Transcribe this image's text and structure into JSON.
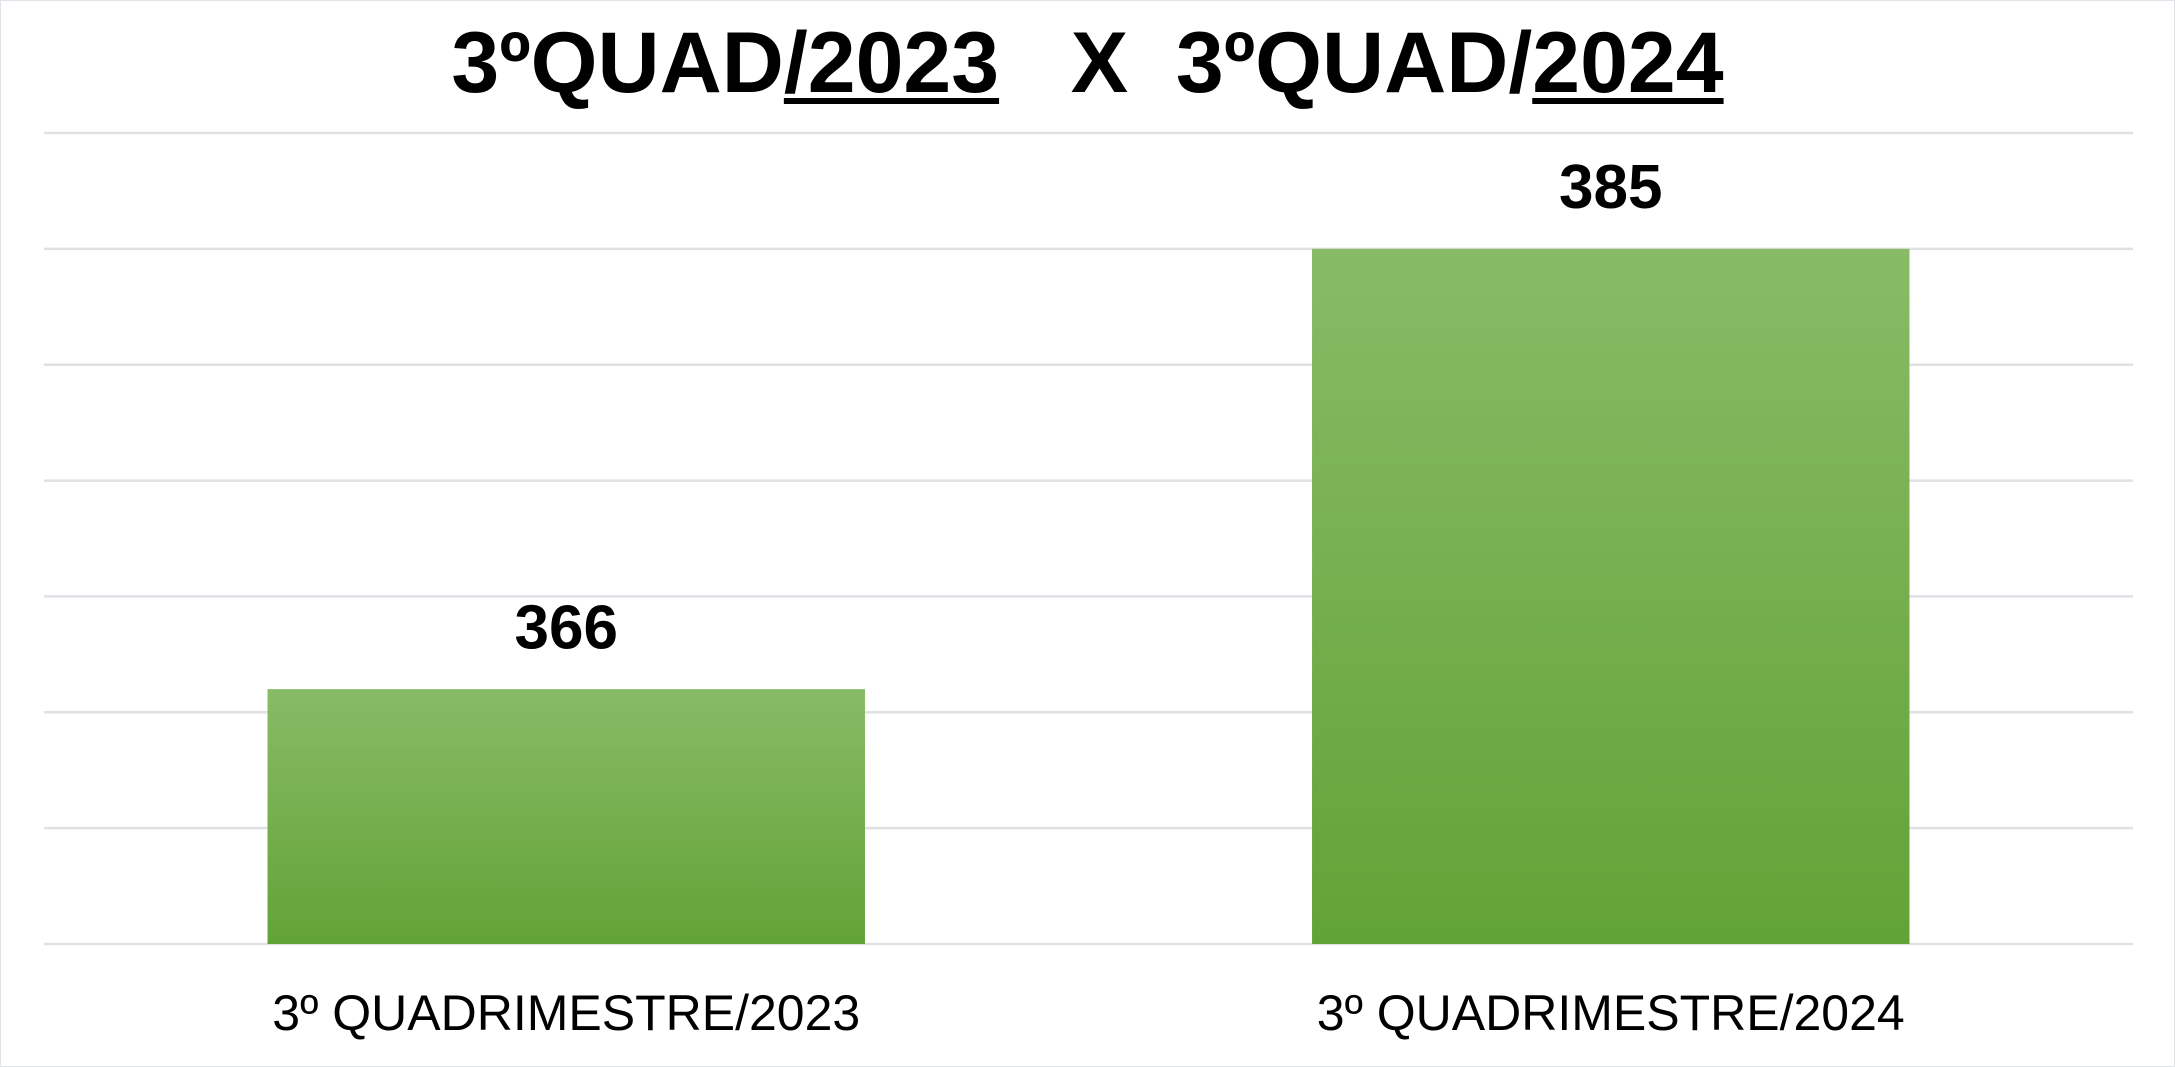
{
  "chart_data": {
    "type": "bar",
    "title": [
      {
        "text": "3ºQUAD",
        "underline": false
      },
      {
        "text": "/2023",
        "underline": true
      },
      {
        "text": "   X  3ºQUAD/",
        "underline": false
      },
      {
        "text": "2024",
        "underline": true
      }
    ],
    "categories": [
      "3º QUADRIMESTRE/2023",
      "3º QUADRIMESTRE/2024"
    ],
    "values": [
      366,
      385
    ],
    "color": [
      "#88bb66",
      "#62a336"
    ],
    "ylim": [
      355,
      390
    ],
    "yticks": [
      355,
      360,
      365,
      370,
      375,
      380,
      385,
      390
    ],
    "grid": true
  }
}
